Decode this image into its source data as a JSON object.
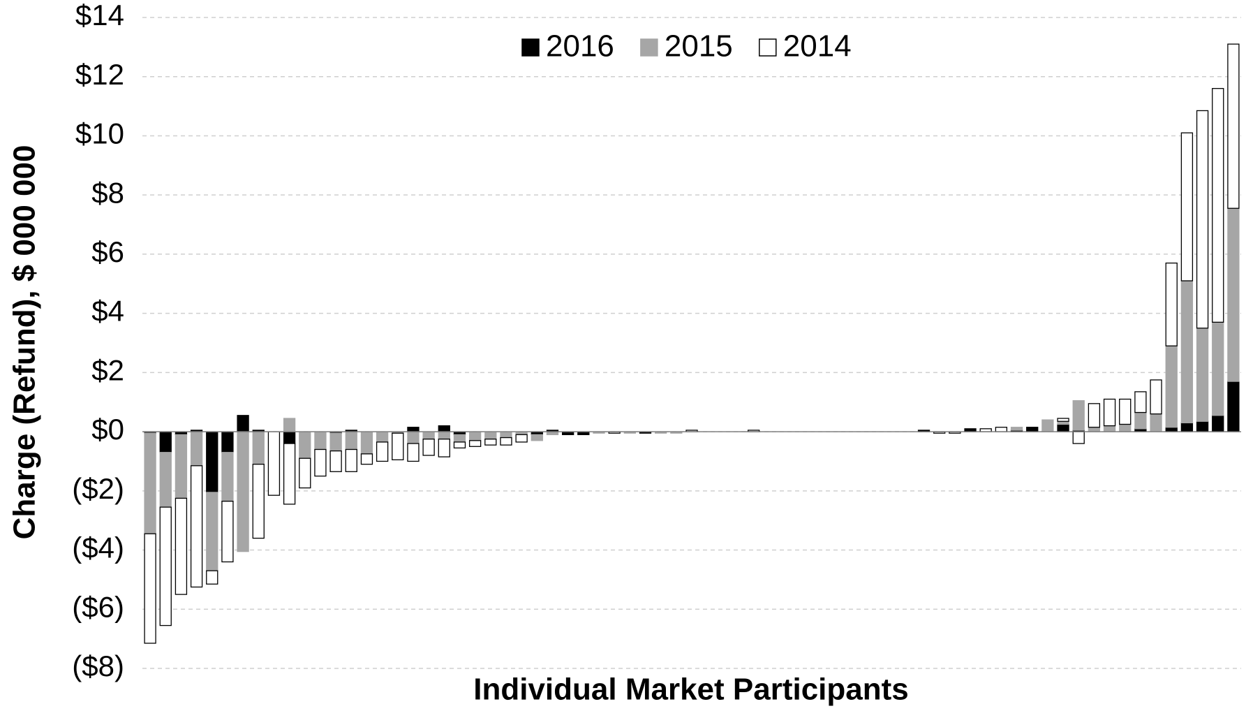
{
  "chart_data": {
    "type": "stacked_bar",
    "ylabel": "Charge (Refund), $ 000 000",
    "xlabel": "Individual Market Participants",
    "categories": [
      null,
      null,
      null,
      null,
      null,
      null,
      null,
      null,
      null,
      null,
      null,
      null,
      null,
      null,
      null,
      null,
      null,
      null,
      null,
      null,
      null,
      null,
      null,
      null,
      null,
      null,
      null,
      null,
      null,
      null,
      null,
      null,
      null,
      null,
      null,
      null,
      null,
      null,
      null,
      null,
      null,
      null,
      null,
      null,
      null,
      null,
      null,
      null,
      null,
      null,
      null,
      null,
      null,
      null,
      null,
      null,
      null,
      null,
      null,
      null,
      null,
      null,
      null,
      null,
      null,
      null,
      null,
      null,
      null,
      null,
      null
    ],
    "series": [
      {
        "name": "2016",
        "color": "#000000",
        "edgecolor": "#000000",
        "values": [
          -0.05,
          -0.7,
          -0.1,
          0.05,
          -2.05,
          -0.7,
          0.55,
          0.05,
          0,
          -0.4,
          0,
          0,
          -0.05,
          0.05,
          0,
          0,
          0,
          0.15,
          0,
          0.2,
          -0.1,
          0,
          0,
          0,
          0,
          -0.1,
          0.05,
          -0.1,
          -0.1,
          0,
          0,
          0,
          -0.05,
          0,
          0,
          0,
          0,
          0,
          0,
          0,
          0,
          0,
          0,
          0,
          0,
          0,
          0,
          0,
          0,
          0,
          0.05,
          0,
          0,
          0.1,
          0,
          0,
          0.05,
          0.15,
          0,
          0.25,
          0.05,
          0,
          0,
          0,
          0.1,
          0,
          0.15,
          0.3,
          0.35,
          0.55,
          1.7
        ]
      },
      {
        "name": "2015",
        "color": "#a6a6a6",
        "edgecolor": "#a6a6a6",
        "values": [
          -3.4,
          -1.85,
          -2.15,
          -1.15,
          -2.65,
          -1.65,
          -4.05,
          -1.1,
          0,
          0.45,
          -0.9,
          -0.6,
          -0.6,
          -0.6,
          -0.75,
          -0.35,
          -0.05,
          -0.4,
          -0.25,
          -0.25,
          -0.25,
          -0.3,
          -0.25,
          -0.2,
          -0.1,
          -0.2,
          -0.1,
          0,
          0,
          -0.05,
          0,
          -0.05,
          0,
          -0.05,
          -0.05,
          0,
          0,
          0,
          0,
          0,
          0,
          0,
          0,
          0,
          0,
          0,
          0,
          0,
          0,
          0,
          0,
          0,
          0,
          0,
          0,
          0,
          0.1,
          0,
          0.4,
          0.1,
          1.0,
          0.15,
          0.2,
          0.25,
          0.55,
          0.6,
          2.75,
          4.8,
          3.15,
          3.15,
          5.85
        ]
      },
      {
        "name": "2014",
        "color": "#ffffff",
        "edgecolor": "#000000",
        "values": [
          -3.7,
          -4.0,
          -3.25,
          -4.1,
          -0.45,
          -2.05,
          0,
          -2.5,
          -2.15,
          -2.05,
          -1.0,
          -0.9,
          -0.7,
          -0.75,
          -0.35,
          -0.65,
          -0.9,
          -0.6,
          -0.55,
          -0.6,
          -0.2,
          -0.2,
          -0.2,
          -0.25,
          -0.25,
          0,
          0,
          0,
          0,
          0,
          -0.05,
          0,
          0,
          0,
          0,
          0.05,
          0,
          0,
          0,
          0.05,
          0,
          0,
          0,
          0,
          0,
          0,
          0,
          0,
          0,
          0,
          0,
          -0.05,
          -0.05,
          0,
          0.1,
          0.15,
          0,
          0,
          0,
          0.1,
          -0.4,
          0.8,
          0.9,
          0.85,
          0.7,
          1.15,
          2.8,
          5.0,
          7.35,
          7.9,
          5.55
        ]
      }
    ],
    "ylim": [
      -8,
      14
    ],
    "yticks": [
      {
        "value": -8,
        "label": "($8)"
      },
      {
        "value": -6,
        "label": "($6)"
      },
      {
        "value": -4,
        "label": "($4)"
      },
      {
        "value": -2,
        "label": "($2)"
      },
      {
        "value": 0,
        "label": "$0"
      },
      {
        "value": 2,
        "label": "$2"
      },
      {
        "value": 4,
        "label": "$4"
      },
      {
        "value": 6,
        "label": "$6"
      },
      {
        "value": 8,
        "label": "$8"
      },
      {
        "value": 10,
        "label": "$10"
      },
      {
        "value": 12,
        "label": "$12"
      },
      {
        "value": 14,
        "label": "$14"
      }
    ],
    "grid": true,
    "legend": "top"
  }
}
